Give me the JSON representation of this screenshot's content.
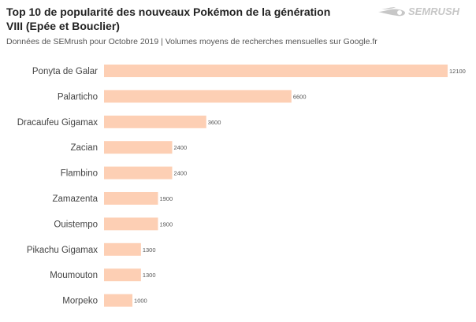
{
  "title": "Top 10 de popularité des nouveaux Pokémon de la génération VIII (Epée et Bouclier)",
  "subtitle": "Données de SEMrush pour Octobre 2019 | Volumes moyens de recherches mensuelles sur Google.fr",
  "brand": {
    "name": "SEMRUSH",
    "color": "#c7c7c7",
    "icon": "fireball-logo-icon"
  },
  "chart_data": {
    "type": "bar",
    "orientation": "horizontal",
    "categories": [
      "Ponyta de Galar",
      "Palarticho",
      "Dracaufeu Gigamax",
      "Zacian",
      "Flambino",
      "Zamazenta",
      "Ouistempo",
      "Pikachu Gigamax",
      "Moumouton",
      "Morpeko"
    ],
    "values": [
      12100,
      6600,
      3600,
      2400,
      2400,
      1900,
      1900,
      1300,
      1300,
      1000
    ],
    "title": "Top 10 de popularité des nouveaux Pokémon de la génération VIII (Epée et Bouclier)",
    "xlabel": "",
    "ylabel": "",
    "xlim": [
      0,
      12100
    ],
    "grid": false,
    "legend": "none",
    "bar_color": "#fdcfb4",
    "data_labels": true
  }
}
